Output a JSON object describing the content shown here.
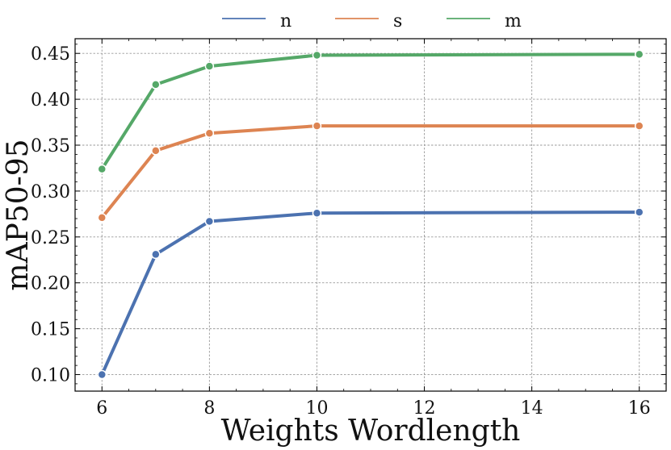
{
  "chart_data": {
    "type": "line",
    "title": "",
    "xlabel": "Weights Wordlength",
    "ylabel": "mAP50-95",
    "x": [
      6,
      7,
      8,
      10,
      16
    ],
    "xlim": [
      5.5,
      16.5
    ],
    "ylim": [
      0.082,
      0.466
    ],
    "xticks": [
      6,
      8,
      10,
      12,
      14,
      16
    ],
    "xtick_labels": [
      "6",
      "8",
      "10",
      "12",
      "14",
      "16"
    ],
    "yticks": [
      0.1,
      0.15,
      0.2,
      0.25,
      0.3,
      0.35,
      0.4,
      0.45
    ],
    "ytick_labels": [
      "0.10",
      "0.15",
      "0.20",
      "0.25",
      "0.30",
      "0.35",
      "0.40",
      "0.45"
    ],
    "grid": true,
    "legend_position": "top-center, outside plot",
    "series": [
      {
        "name": "n",
        "color": "#4c72b0",
        "values": [
          0.1,
          0.231,
          0.267,
          0.276,
          0.277
        ]
      },
      {
        "name": "s",
        "color": "#dd8452",
        "values": [
          0.271,
          0.344,
          0.363,
          0.371,
          0.371
        ]
      },
      {
        "name": "m",
        "color": "#55a868",
        "values": [
          0.324,
          0.416,
          0.436,
          0.448,
          0.449
        ]
      }
    ]
  }
}
